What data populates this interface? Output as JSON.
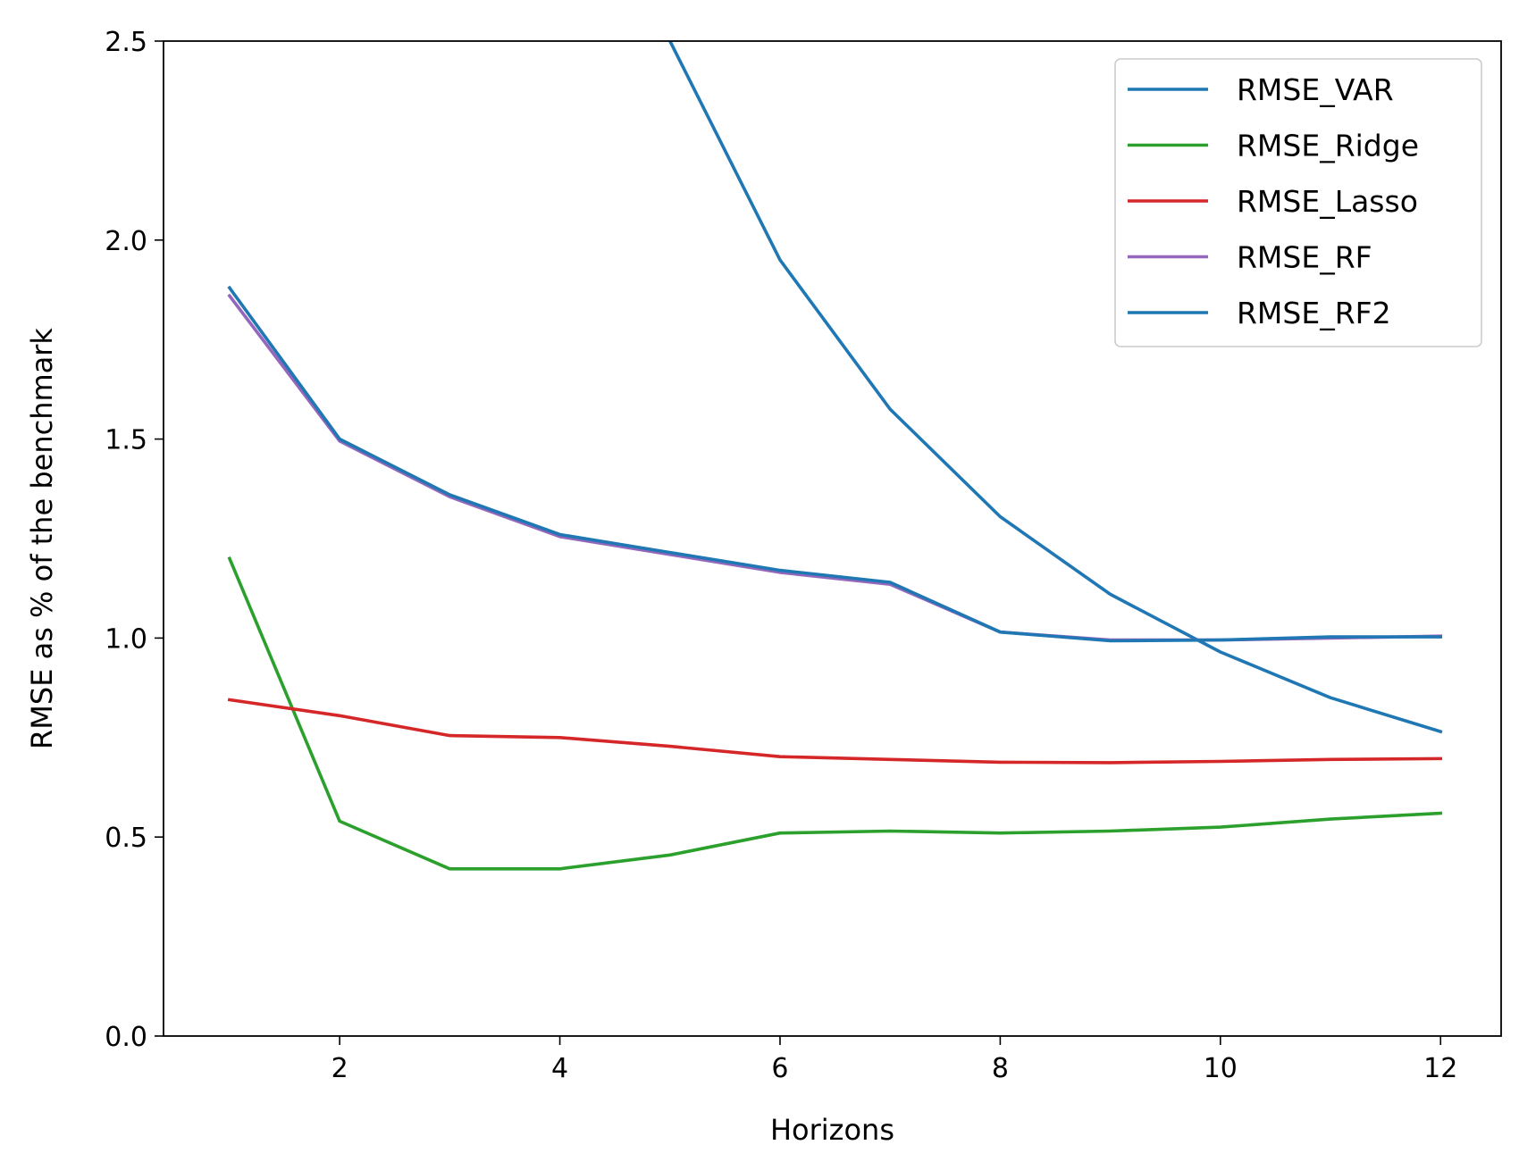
{
  "chart_data": {
    "type": "line",
    "xlabel": "Horizons",
    "ylabel": "RMSE as % of the benchmark",
    "xlim": [
      0.4,
      12.55
    ],
    "ylim": [
      0,
      2.5
    ],
    "xticks": [
      2,
      4,
      6,
      8,
      10,
      12
    ],
    "xtick_labels": [
      "2",
      "4",
      "6",
      "8",
      "10",
      "12"
    ],
    "yticks": [
      0.0,
      0.5,
      1.0,
      1.5,
      2.0,
      2.5
    ],
    "ytick_labels": [
      "0.0",
      "0.5",
      "1.0",
      "1.5",
      "2.0",
      "2.5"
    ],
    "grid": false,
    "legend_position": "top-right",
    "x": [
      1,
      2,
      3,
      4,
      5,
      6,
      7,
      8,
      9,
      10,
      11,
      12
    ],
    "series": [
      {
        "name": "RMSE_VAR",
        "color": "#1f77b4",
        "values": [
          null,
          null,
          null,
          null,
          2.5,
          1.95,
          1.575,
          1.305,
          1.11,
          0.965,
          0.85,
          0.765
        ]
      },
      {
        "name": "RMSE_Ridge",
        "color": "#2ca02c",
        "values": [
          1.2,
          0.54,
          0.42,
          0.42,
          0.455,
          0.51,
          0.515,
          0.51,
          0.515,
          0.525,
          0.545,
          0.56
        ]
      },
      {
        "name": "RMSE_Lasso",
        "color": "#d62728",
        "values": [
          0.845,
          0.805,
          0.755,
          0.75,
          0.728,
          0.702,
          0.695,
          0.688,
          0.687,
          0.69,
          0.695,
          0.697
        ]
      },
      {
        "name": "RMSE_RF",
        "color": "#9467bd",
        "values": [
          1.86,
          1.495,
          1.355,
          1.255,
          1.21,
          1.165,
          1.135,
          1.015,
          0.995,
          0.995,
          1.0,
          1.005
        ]
      },
      {
        "name": "RMSE_RF2",
        "color": "#1f77b4",
        "values": [
          1.88,
          1.5,
          1.36,
          1.26,
          1.215,
          1.17,
          1.14,
          1.015,
          0.993,
          0.995,
          1.003,
          1.003
        ]
      }
    ]
  }
}
